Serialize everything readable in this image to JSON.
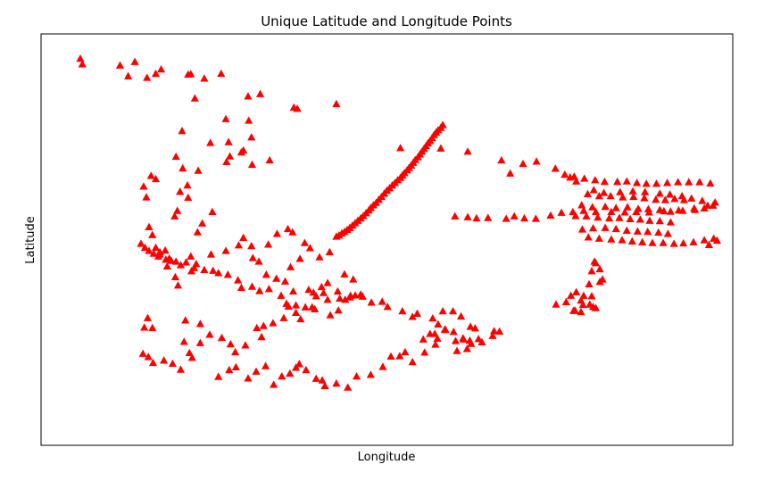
{
  "chart_data": {
    "type": "scatter",
    "title": "Unique Latitude and Longitude Points",
    "xlabel": "Longitude",
    "ylabel": "Latitude",
    "xlim": [
      0,
      100
    ],
    "ylim": [
      0,
      100
    ],
    "show_ticks": false,
    "grid": false,
    "legend": "none",
    "marker": "triangle",
    "marker_color": "#ff0000",
    "points": [
      [
        4.5,
        95.6
      ],
      [
        4.8,
        94.2
      ],
      [
        10.4,
        93.9
      ],
      [
        11.6,
        91.2
      ],
      [
        12.6,
        94.8
      ],
      [
        14.4,
        90.8
      ],
      [
        15.7,
        91.8
      ],
      [
        16.5,
        92.9
      ],
      [
        20.5,
        91.6
      ],
      [
        20.9,
        91.7
      ],
      [
        22.9,
        90.6
      ],
      [
        25.4,
        91.8
      ],
      [
        21.5,
        85.6
      ],
      [
        29.4,
        86.1
      ],
      [
        31.2,
        86.7
      ],
      [
        36.2,
        83.3
      ],
      [
        36.7,
        83.0
      ],
      [
        42.5,
        84.2
      ],
      [
        26.1,
        80.4
      ],
      [
        29.5,
        80.0
      ],
      [
        19.6,
        77.4
      ],
      [
        23.8,
        74.4
      ],
      [
        26.2,
        69.6
      ],
      [
        26.5,
        74.6
      ],
      [
        28.4,
        72.0
      ],
      [
        28.7,
        72.5
      ],
      [
        29.9,
        75.8
      ],
      [
        26.7,
        71.0
      ],
      [
        30.0,
        68.9
      ],
      [
        32.6,
        70.0
      ],
      [
        18.7,
        70.9
      ],
      [
        19.7,
        68.0
      ],
      [
        20.4,
        63.7
      ],
      [
        19.3,
        62.1
      ],
      [
        14.3,
        60.7
      ],
      [
        13.9,
        63.4
      ],
      [
        15.7,
        65.3
      ],
      [
        15.0,
        66.1
      ],
      [
        22.0,
        67.4
      ],
      [
        18.5,
        55.9
      ],
      [
        18.9,
        57.3
      ],
      [
        20.5,
        60.6
      ],
      [
        24.1,
        57.0
      ],
      [
        22.6,
        54.1
      ],
      [
        21.9,
        51.9
      ],
      [
        14.7,
        53.2
      ],
      [
        15.2,
        51.2
      ],
      [
        16.1,
        45.8
      ],
      [
        17.4,
        43.3
      ],
      [
        19.0,
        38.5
      ],
      [
        18.6,
        40.6
      ],
      [
        21.0,
        42.1
      ],
      [
        21.7,
        43.9
      ],
      [
        17.1,
        47.3
      ],
      [
        17.7,
        45.3
      ],
      [
        15.7,
        48.0
      ],
      [
        16.3,
        46.9
      ],
      [
        20.9,
        45.8
      ],
      [
        23.9,
        46.3
      ],
      [
        26.1,
        47.2
      ],
      [
        28.7,
        50.5
      ],
      [
        28.0,
        48.6
      ],
      [
        29.9,
        48.4
      ],
      [
        30.1,
        45.4
      ],
      [
        31.0,
        44.5
      ],
      [
        32.4,
        48.8
      ],
      [
        33.7,
        51.5
      ],
      [
        35.3,
        52.7
      ],
      [
        36.0,
        51.9
      ],
      [
        37.8,
        49.2
      ],
      [
        38.6,
        47.9
      ],
      [
        40.0,
        45.6
      ],
      [
        41.5,
        46.9
      ],
      [
        37.1,
        45.2
      ],
      [
        35.7,
        43.1
      ],
      [
        32.1,
        41.2
      ],
      [
        33.6,
        40.2
      ],
      [
        34.9,
        39.5
      ],
      [
        36.1,
        37.0
      ],
      [
        38.4,
        37.4
      ],
      [
        39.1,
        36.7
      ],
      [
        40.3,
        38.1
      ],
      [
        41.2,
        39.1
      ],
      [
        42.7,
        37.0
      ],
      [
        43.7,
        41.3
      ],
      [
        45.0,
        40.0
      ],
      [
        44.6,
        35.9
      ],
      [
        43.8,
        34.9
      ],
      [
        42.8,
        32.2
      ],
      [
        41.6,
        31.0
      ],
      [
        39.3,
        32.5
      ],
      [
        38.9,
        33.0
      ],
      [
        37.2,
        30.0
      ],
      [
        36.5,
        31.6
      ],
      [
        34.7,
        30.3
      ],
      [
        33.1,
        29.0
      ],
      [
        31.7,
        28.3
      ],
      [
        30.7,
        27.8
      ],
      [
        31.4,
        25.5
      ],
      [
        29.0,
        23.4
      ],
      [
        27.5,
        21.7
      ],
      [
        26.8,
        23.7
      ],
      [
        25.5,
        25.3
      ],
      [
        23.7,
        26.1
      ],
      [
        22.3,
        24.0
      ],
      [
        21.1,
        20.3
      ],
      [
        20.7,
        21.5
      ],
      [
        19.4,
        17.3
      ],
      [
        18.2,
        18.8
      ],
      [
        16.9,
        19.6
      ],
      [
        15.3,
        19.0
      ],
      [
        14.6,
        20.5
      ],
      [
        13.8,
        21.3
      ],
      [
        14.0,
        27.9
      ],
      [
        15.2,
        27.8
      ],
      [
        14.5,
        30.3
      ],
      [
        20.1,
        29.7
      ],
      [
        22.3,
        28.8
      ],
      [
        19.9,
        24.3
      ],
      [
        25.0,
        15.5
      ],
      [
        26.6,
        17.2
      ],
      [
        27.6,
        17.9
      ],
      [
        29.4,
        15.1
      ],
      [
        30.6,
        16.8
      ],
      [
        32.0,
        18.2
      ],
      [
        33.2,
        13.5
      ],
      [
        34.4,
        15.6
      ],
      [
        35.6,
        16.3
      ],
      [
        36.5,
        17.8
      ],
      [
        37.0,
        18.7
      ],
      [
        38.0,
        17.2
      ],
      [
        39.5,
        15.0
      ],
      [
        40.4,
        14.6
      ],
      [
        40.8,
        13.2
      ],
      [
        42.5,
        13.8
      ],
      [
        44.2,
        12.8
      ],
      [
        45.5,
        15.6
      ],
      [
        47.6,
        16.0
      ],
      [
        49.4,
        18.0
      ],
      [
        50.6,
        20.6
      ],
      [
        51.9,
        20.7
      ],
      [
        52.7,
        21.7
      ],
      [
        53.8,
        19.2
      ],
      [
        55.6,
        21.6
      ],
      [
        57.2,
        23.6
      ],
      [
        57.5,
        25.1
      ],
      [
        58.6,
        27.4
      ],
      [
        57.6,
        28.7
      ],
      [
        58.7,
        27.3
      ],
      [
        59.9,
        26.8
      ],
      [
        61.4,
        24.9
      ],
      [
        62.3,
        24.6
      ],
      [
        63.6,
        25.0
      ],
      [
        60.2,
        24.5
      ],
      [
        61.9,
        22.5
      ],
      [
        60.4,
        22.0
      ],
      [
        55.4,
        24.9
      ],
      [
        56.4,
        26.3
      ],
      [
        57.1,
        26.3
      ],
      [
        61.3,
        25.2
      ],
      [
        62.5,
        23.8
      ],
      [
        64.1,
        24.2
      ],
      [
        65.9,
        27.0
      ],
      [
        66.7,
        26.9
      ],
      [
        65.7,
        25.8
      ],
      [
        63.1,
        27.7
      ],
      [
        62.4,
        28.1
      ],
      [
        61.0,
        30.7
      ],
      [
        59.8,
        32.0
      ],
      [
        58.3,
        32.0
      ],
      [
        56.8,
        30.2
      ],
      [
        54.5,
        31.4
      ],
      [
        53.8,
        30.6
      ],
      [
        52.3,
        32.0
      ],
      [
        50.1,
        33.1
      ],
      [
        49.3,
        34.4
      ],
      [
        47.7,
        34.2
      ],
      [
        46.4,
        35.7
      ],
      [
        46.1,
        36.2
      ],
      [
        45.3,
        36.0
      ],
      [
        44.5,
        35.5
      ],
      [
        43.0,
        35.2
      ],
      [
        41.2,
        34.9
      ],
      [
        40.6,
        36.6
      ],
      [
        39.5,
        35.8
      ],
      [
        37.9,
        33.0
      ],
      [
        36.5,
        33.5
      ],
      [
        35.4,
        33.2
      ],
      [
        35.1,
        33.9
      ],
      [
        34.3,
        35.9
      ],
      [
        32.5,
        37.6
      ],
      [
        31.1,
        37.1
      ],
      [
        30.0,
        38.2
      ],
      [
        28.4,
        37.9
      ],
      [
        27.9,
        39.8
      ],
      [
        26.4,
        41.2
      ],
      [
        25.0,
        41.6
      ],
      [
        24.2,
        42.2
      ],
      [
        22.9,
        42.4
      ],
      [
        21.4,
        42.9
      ],
      [
        20.2,
        44.3
      ],
      [
        19.4,
        43.6
      ],
      [
        18.7,
        44.5
      ],
      [
        18.0,
        44.7
      ],
      [
        17.2,
        45.0
      ],
      [
        16.3,
        46.3
      ],
      [
        15.4,
        46.5
      ],
      [
        14.7,
        47.2
      ],
      [
        14.1,
        48.0
      ],
      [
        13.5,
        49.0
      ],
      [
        52.0,
        73.1
      ],
      [
        58.0,
        73.0
      ],
      [
        62.0,
        72.2
      ],
      [
        67.0,
        70.0
      ],
      [
        68.3,
        66.7
      ],
      [
        70.2,
        69.1
      ],
      [
        72.2,
        69.7
      ],
      [
        75.0,
        67.9
      ],
      [
        77.2,
        65.7
      ],
      [
        78.1,
        64.7
      ],
      [
        80.7,
        62.5
      ],
      [
        82.2,
        61.8
      ],
      [
        84.6,
        62.0
      ],
      [
        86.5,
        62.2
      ],
      [
        88.3,
        62.0
      ],
      [
        90.5,
        61.6
      ],
      [
        92.0,
        61.4
      ],
      [
        93.8,
        61.0
      ],
      [
        95.2,
        60.4
      ],
      [
        96.8,
        59.8
      ],
      [
        98.4,
        58.6
      ],
      [
        98.7,
        59.4
      ],
      [
        97.6,
        58.6
      ],
      [
        95.6,
        57.9
      ],
      [
        93.3,
        57.4
      ],
      [
        91.1,
        57.2
      ],
      [
        88.9,
        56.9
      ],
      [
        87.0,
        57.0
      ],
      [
        85.3,
        56.9
      ],
      [
        83.3,
        57.0
      ],
      [
        81.0,
        57.0
      ],
      [
        79.2,
        57.3
      ],
      [
        77.6,
        57.0
      ],
      [
        75.9,
        56.8
      ],
      [
        74.3,
        56.1
      ],
      [
        72.1,
        55.3
      ],
      [
        70.4,
        55.4
      ],
      [
        68.9,
        55.9
      ],
      [
        67.7,
        55.3
      ],
      [
        65.0,
        55.5
      ],
      [
        63.3,
        55.4
      ],
      [
        62.0,
        55.7
      ],
      [
        60.1,
        55.9
      ],
      [
        76.4,
        66.4
      ],
      [
        77.8,
        65.9
      ],
      [
        79.3,
        65.4
      ],
      [
        80.9,
        65.0
      ],
      [
        82.3,
        64.6
      ],
      [
        84.2,
        64.6
      ],
      [
        85.6,
        64.7
      ],
      [
        87.1,
        64.3
      ],
      [
        88.5,
        64.1
      ],
      [
        90.0,
        64.1
      ],
      [
        91.6,
        64.3
      ],
      [
        93.2,
        64.5
      ],
      [
        94.8,
        64.5
      ],
      [
        96.4,
        64.5
      ],
      [
        98.0,
        64.2
      ],
      [
        79.8,
        61.5
      ],
      [
        81.5,
        61.0
      ],
      [
        83.2,
        61.0
      ],
      [
        85.0,
        60.7
      ],
      [
        86.6,
        60.8
      ],
      [
        88.2,
        60.5
      ],
      [
        89.9,
        60.1
      ],
      [
        91.3,
        60.0
      ],
      [
        92.7,
        60.3
      ],
      [
        94.1,
        60.0
      ],
      [
        78.9,
        58.7
      ],
      [
        80.5,
        58.2
      ],
      [
        82.4,
        58.3
      ],
      [
        84.0,
        58.0
      ],
      [
        85.7,
        58.2
      ],
      [
        87.3,
        57.8
      ],
      [
        88.8,
        57.7
      ],
      [
        90.5,
        57.5
      ],
      [
        92.1,
        57.1
      ],
      [
        93.9,
        57.3
      ],
      [
        95.7,
        57.5
      ],
      [
        97.1,
        57.9
      ],
      [
        78.0,
        56.0
      ],
      [
        79.6,
        55.9
      ],
      [
        81.3,
        55.6
      ],
      [
        83.0,
        55.4
      ],
      [
        84.5,
        55.5
      ],
      [
        86.1,
        55.2
      ],
      [
        87.6,
        55.1
      ],
      [
        89.0,
        54.8
      ],
      [
        90.5,
        54.7
      ],
      [
        92.1,
        54.4
      ],
      [
        79.0,
        52.6
      ],
      [
        80.6,
        52.9
      ],
      [
        82.4,
        53.0
      ],
      [
        84.0,
        52.7
      ],
      [
        85.6,
        52.3
      ],
      [
        87.2,
        52.1
      ],
      [
        88.7,
        52.0
      ],
      [
        90.3,
        51.8
      ],
      [
        91.7,
        51.5
      ],
      [
        79.9,
        50.6
      ],
      [
        81.5,
        50.3
      ],
      [
        83.3,
        50.1
      ],
      [
        84.9,
        49.9
      ],
      [
        86.4,
        49.6
      ],
      [
        87.9,
        49.4
      ],
      [
        89.4,
        49.2
      ],
      [
        91.0,
        49.2
      ],
      [
        92.6,
        49.0
      ],
      [
        94.0,
        49.1
      ],
      [
        95.5,
        49.4
      ],
      [
        97.1,
        49.9
      ],
      [
        98.5,
        50.3
      ],
      [
        99.0,
        49.8
      ],
      [
        97.8,
        48.7
      ],
      [
        80.8,
        44.5
      ],
      [
        81.0,
        44.1
      ],
      [
        80.4,
        42.1
      ],
      [
        81.6,
        42.6
      ],
      [
        77.3,
        35.9
      ],
      [
        78.1,
        36.8
      ],
      [
        76.6,
        34.3
      ],
      [
        75.1,
        33.7
      ],
      [
        77.7,
        32.1
      ],
      [
        78.8,
        31.8
      ],
      [
        80.6,
        33.1
      ],
      [
        80.4,
        35.8
      ],
      [
        82.0,
        40.0
      ],
      [
        81.6,
        39.4
      ],
      [
        80.0,
        38.8
      ],
      [
        79.2,
        35.9
      ],
      [
        78.8,
        34.7
      ],
      [
        77.9,
        32.2
      ],
      [
        79.1,
        33.6
      ],
      [
        80.1,
        33.7
      ],
      [
        81.0,
        32.8
      ],
      [
        42.5,
        50.8
      ],
      [
        42.9,
        51.1
      ],
      [
        43.3,
        51.6
      ],
      [
        43.7,
        52.0
      ],
      [
        44.1,
        52.5
      ],
      [
        44.5,
        53.0
      ],
      [
        44.9,
        53.6
      ],
      [
        45.3,
        54.2
      ],
      [
        45.7,
        54.8
      ],
      [
        46.1,
        55.4
      ],
      [
        46.5,
        56.0
      ],
      [
        46.9,
        56.7
      ],
      [
        47.3,
        57.4
      ],
      [
        47.6,
        58.0
      ],
      [
        48.0,
        58.7
      ],
      [
        48.4,
        59.3
      ],
      [
        48.8,
        60.1
      ],
      [
        49.2,
        60.8
      ],
      [
        49.6,
        61.6
      ],
      [
        50.0,
        62.4
      ],
      [
        50.4,
        63.0
      ],
      [
        50.8,
        63.7
      ],
      [
        51.2,
        64.3
      ],
      [
        51.6,
        65.0
      ],
      [
        52.0,
        65.6
      ],
      [
        52.3,
        66.2
      ],
      [
        52.6,
        66.8
      ],
      [
        53.0,
        67.5
      ],
      [
        53.3,
        68.1
      ],
      [
        53.6,
        68.7
      ],
      [
        53.9,
        69.4
      ],
      [
        54.2,
        70.1
      ],
      [
        54.6,
        70.8
      ],
      [
        54.9,
        71.5
      ],
      [
        55.2,
        72.2
      ],
      [
        55.5,
        72.9
      ],
      [
        55.8,
        73.6
      ],
      [
        56.1,
        74.3
      ],
      [
        56.4,
        74.9
      ],
      [
        56.7,
        75.6
      ],
      [
        57.0,
        76.4
      ],
      [
        57.3,
        77.0
      ],
      [
        57.6,
        77.6
      ],
      [
        58.0,
        78.2
      ],
      [
        58.3,
        78.9
      ]
    ]
  }
}
